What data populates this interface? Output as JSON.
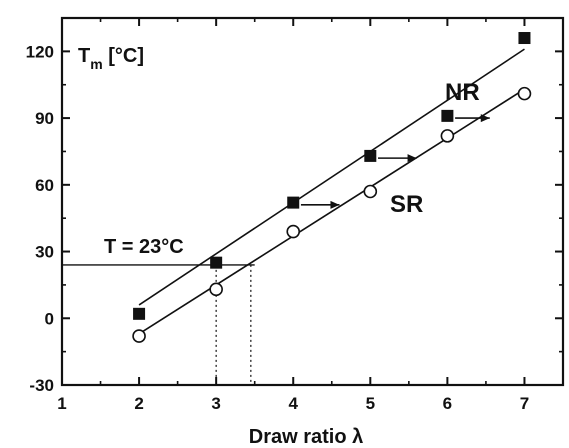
{
  "chart_data": {
    "type": "scatter",
    "xlabel": "Draw ratio λ",
    "ylabel": "T",
    "ylabel_sub": "m",
    "ylabel_unit": " [°C]",
    "xlim": [
      1,
      7.5
    ],
    "ylim": [
      -30,
      135
    ],
    "xticks": [
      1,
      2,
      3,
      4,
      5,
      6,
      7
    ],
    "yticks": [
      -30,
      0,
      30,
      60,
      90,
      120
    ],
    "grid": false,
    "series": [
      {
        "name": "NR",
        "marker": "filled-square",
        "x": [
          2,
          3,
          4,
          5,
          6,
          7
        ],
        "y": [
          2,
          25,
          52,
          73,
          91,
          126
        ],
        "fit": {
          "x": [
            2,
            7
          ],
          "y": [
            6,
            121
          ]
        }
      },
      {
        "name": "SR",
        "marker": "open-circle",
        "x": [
          2,
          3,
          4,
          5,
          6,
          7
        ],
        "y": [
          -8,
          13,
          39,
          57,
          82,
          101
        ],
        "fit": {
          "x": [
            2,
            7
          ],
          "y": [
            -7,
            103
          ]
        }
      }
    ],
    "arrows": [
      {
        "y": 51,
        "x_from": 4.1,
        "x_to": 4.6
      },
      {
        "y": 72,
        "x_from": 5.1,
        "x_to": 5.6
      },
      {
        "y": 90,
        "x_from": 6.1,
        "x_to": 6.55
      }
    ],
    "annotations": [
      {
        "text": "T = 23°C",
        "x": 1.55,
        "y": 31
      }
    ],
    "reference_lines": {
      "y": 24,
      "x_from": 1,
      "x_to": 3.5,
      "drops": [
        3.0,
        3.45
      ]
    }
  }
}
